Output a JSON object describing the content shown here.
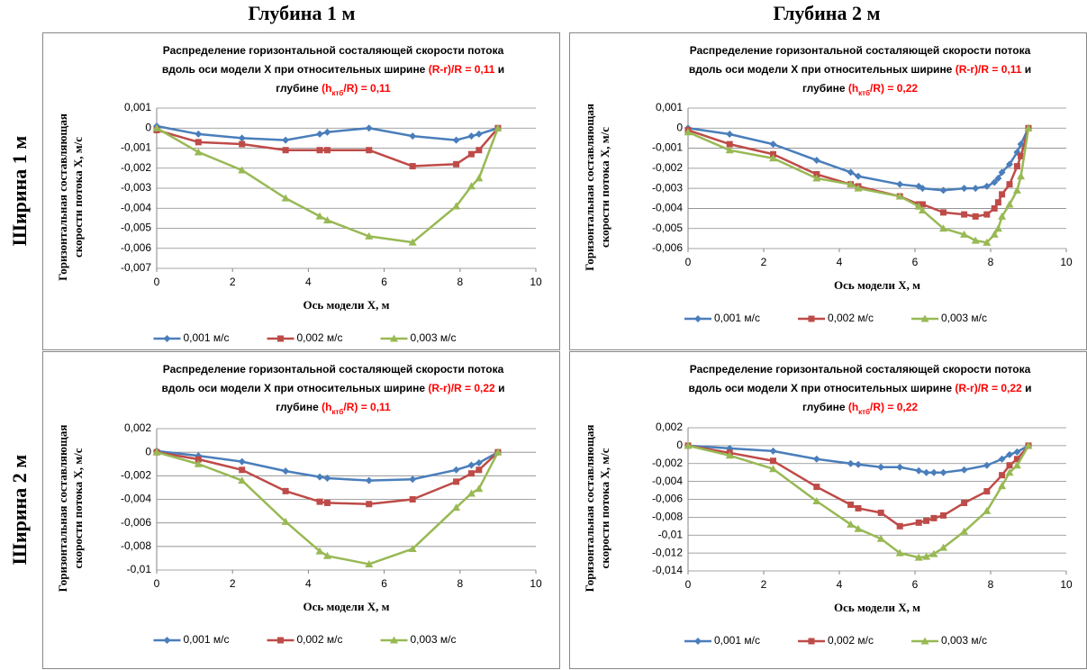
{
  "column_headers": [
    "Глубина 1 м",
    "Глубина 2 м"
  ],
  "row_headers": [
    "Ширина 1 м",
    "Ширина 2 м"
  ],
  "chart_data": [
    {
      "type": "line",
      "title": [
        [
          {
            "text": "Распределение горизонтальной состаляющей скорости потока"
          }
        ],
        [
          {
            "text": "вдоль оси модели X  при относительных ширине "
          },
          {
            "text": "(R-r)/R = 0,11",
            "color": "#ff0000"
          },
          {
            "text": " и"
          }
        ],
        [
          {
            "text": "глубине "
          },
          {
            "text": "(h",
            "color": "#ff0000"
          },
          {
            "text": "ктб",
            "color": "#ff0000",
            "sub": true
          },
          {
            "text": "/R) = 0,11",
            "color": "#ff0000"
          }
        ]
      ],
      "xlabel": "Ось модели X, м",
      "ylabel": [
        "Горизонтальная  составляющая",
        "скорости потока X, м/с"
      ],
      "xlim": [
        0,
        10
      ],
      "xticks": [
        0,
        2,
        4,
        6,
        8,
        10
      ],
      "ylim": [
        -0.007,
        0.001
      ],
      "yticks": [
        {
          "value": 0.001,
          "label": "0,001"
        },
        0,
        {
          "value": -0.001,
          "label": "-0,001"
        },
        {
          "value": -0.002,
          "label": "-0,002"
        },
        {
          "value": -0.003,
          "label": "-0,003"
        },
        {
          "value": -0.004,
          "label": "-0,004"
        },
        {
          "value": -0.005,
          "label": "-0,005"
        },
        {
          "value": -0.006,
          "label": "-0,006"
        },
        {
          "value": -0.007,
          "label": "-0,007"
        }
      ],
      "grid": true,
      "legend": "bottom",
      "series": [
        {
          "name": "0,001 м/с",
          "color": "#4a7ebb",
          "marker": "diamond",
          "x": [
            0,
            1.1,
            2.25,
            3.4,
            4.3,
            4.5,
            5.6,
            6.75,
            7.9,
            8.3,
            8.5,
            9
          ],
          "values": [
            0.0001,
            -0.0003,
            -0.0005,
            -0.0006,
            -0.0003,
            -0.0002,
            0,
            -0.0004,
            -0.0006,
            -0.0004,
            -0.0003,
            0
          ]
        },
        {
          "name": "0,002 м/с",
          "color": "#be4b48",
          "marker": "square",
          "x": [
            0,
            1.1,
            2.25,
            3.4,
            4.3,
            4.5,
            5.6,
            6.75,
            7.9,
            8.3,
            8.5,
            9
          ],
          "values": [
            -0.0001,
            -0.0007,
            -0.0008,
            -0.0011,
            -0.0011,
            -0.0011,
            -0.0011,
            -0.0019,
            -0.0018,
            -0.0013,
            -0.0011,
            0
          ]
        },
        {
          "name": "0,003 м/с",
          "color": "#98b954",
          "marker": "triangle",
          "x": [
            0,
            1.1,
            2.25,
            3.4,
            4.3,
            4.5,
            5.6,
            6.75,
            7.9,
            8.3,
            8.5,
            9
          ],
          "values": [
            0,
            -0.0012,
            -0.0021,
            -0.0035,
            -0.0044,
            -0.0046,
            -0.0054,
            -0.0057,
            -0.0039,
            -0.0029,
            -0.0025,
            0
          ]
        }
      ]
    },
    {
      "type": "line",
      "title": [
        [
          {
            "text": "Распределение горизонтальной состаляющей скорости потока"
          }
        ],
        [
          {
            "text": "вдоль оси модели X  при относительных ширине "
          },
          {
            "text": "(R-r)/R = 0,11",
            "color": "#ff0000"
          },
          {
            "text": " и"
          }
        ],
        [
          {
            "text": "глубине "
          },
          {
            "text": "(h",
            "color": "#ff0000"
          },
          {
            "text": "ктб",
            "color": "#ff0000",
            "sub": true
          },
          {
            "text": "/R) = 0,22",
            "color": "#ff0000"
          }
        ]
      ],
      "xlabel": "Ось модели X, м",
      "ylabel": [
        "Горизонтальная  составляющая",
        "скорости потока X, м/с"
      ],
      "xlim": [
        0,
        10
      ],
      "xticks": [
        0,
        2,
        4,
        6,
        8,
        10
      ],
      "ylim": [
        -0.006,
        0.001
      ],
      "yticks": [
        {
          "value": 0.001,
          "label": "0,001"
        },
        0,
        {
          "value": -0.001,
          "label": "-0,001"
        },
        {
          "value": -0.002,
          "label": "-0,002"
        },
        {
          "value": -0.003,
          "label": "-0,003"
        },
        {
          "value": -0.004,
          "label": "-0,004"
        },
        {
          "value": -0.005,
          "label": "-0,005"
        },
        {
          "value": -0.006,
          "label": "-0,006"
        }
      ],
      "grid": true,
      "legend": "bottom",
      "series": [
        {
          "name": "0,001 м/с",
          "color": "#4a7ebb",
          "marker": "diamond",
          "x": [
            0,
            1.1,
            2.25,
            3.4,
            4.3,
            4.5,
            5.6,
            6.1,
            6.2,
            6.75,
            7.3,
            7.6,
            7.9,
            8.1,
            8.2,
            8.3,
            8.5,
            8.7,
            8.8,
            9
          ],
          "values": [
            0,
            -0.0003,
            -0.0008,
            -0.0016,
            -0.0022,
            -0.0024,
            -0.0028,
            -0.0029,
            -0.003,
            -0.0031,
            -0.003,
            -0.003,
            -0.0029,
            -0.0027,
            -0.0025,
            -0.0022,
            -0.0018,
            -0.0012,
            -0.0008,
            0
          ]
        },
        {
          "name": "0,002 м/с",
          "color": "#be4b48",
          "marker": "square",
          "x": [
            0,
            1.1,
            2.25,
            3.4,
            4.3,
            4.5,
            5.6,
            6.1,
            6.2,
            6.75,
            7.3,
            7.6,
            7.9,
            8.1,
            8.2,
            8.3,
            8.5,
            8.7,
            8.8,
            9
          ],
          "values": [
            -0.0001,
            -0.0008,
            -0.0013,
            -0.0023,
            -0.0028,
            -0.0029,
            -0.0034,
            -0.0038,
            -0.0038,
            -0.0042,
            -0.0043,
            -0.0044,
            -0.0043,
            -0.004,
            -0.0037,
            -0.0033,
            -0.0028,
            -0.0019,
            -0.0014,
            0
          ]
        },
        {
          "name": "0,003 м/с",
          "color": "#98b954",
          "marker": "triangle",
          "x": [
            0,
            1.1,
            2.25,
            3.4,
            4.3,
            4.5,
            5.6,
            6.1,
            6.2,
            6.75,
            7.3,
            7.6,
            7.9,
            8.1,
            8.2,
            8.3,
            8.5,
            8.7,
            8.8,
            9
          ],
          "values": [
            -0.0002,
            -0.0011,
            -0.0015,
            -0.0025,
            -0.0028,
            -0.003,
            -0.0034,
            -0.0039,
            -0.0041,
            -0.005,
            -0.0053,
            -0.0056,
            -0.0057,
            -0.0053,
            -0.005,
            -0.0044,
            -0.0038,
            -0.0031,
            -0.0024,
            0
          ]
        }
      ]
    },
    {
      "type": "line",
      "title": [
        [
          {
            "text": "Распределение горизонтальной состаляющей скорости потока"
          }
        ],
        [
          {
            "text": "вдоль оси модели X  при относительных ширине "
          },
          {
            "text": "(R-r)/R = 0,22",
            "color": "#ff0000"
          },
          {
            "text": " и"
          }
        ],
        [
          {
            "text": "глубине "
          },
          {
            "text": "(h",
            "color": "#ff0000"
          },
          {
            "text": "ктб",
            "color": "#ff0000",
            "sub": true
          },
          {
            "text": "/R) = 0,11",
            "color": "#ff0000"
          }
        ]
      ],
      "xlabel": "Ось модели X, м",
      "ylabel": [
        "Горизонтальная  составляющая",
        "скорости потока X, м/с"
      ],
      "xlim": [
        0,
        10
      ],
      "xticks": [
        0,
        2,
        4,
        6,
        8,
        10
      ],
      "ylim": [
        -0.01,
        0.002
      ],
      "yticks": [
        {
          "value": 0.002,
          "label": "0,002"
        },
        0,
        {
          "value": -0.002,
          "label": "-0,002"
        },
        {
          "value": -0.004,
          "label": "-0,004"
        },
        {
          "value": -0.006,
          "label": "-0,006"
        },
        {
          "value": -0.008,
          "label": "-0,008"
        },
        {
          "value": -0.01,
          "label": "-0,01"
        }
      ],
      "grid": true,
      "legend": "bottom",
      "series": [
        {
          "name": "0,001 м/с",
          "color": "#4a7ebb",
          "marker": "diamond",
          "x": [
            0,
            1.1,
            2.25,
            3.4,
            4.3,
            4.5,
            5.6,
            6.75,
            7.9,
            8.3,
            8.5,
            9
          ],
          "values": [
            0.0001,
            -0.0003,
            -0.0008,
            -0.0016,
            -0.0021,
            -0.0022,
            -0.0024,
            -0.0023,
            -0.0015,
            -0.0011,
            -0.0009,
            0
          ]
        },
        {
          "name": "0,002 м/с",
          "color": "#be4b48",
          "marker": "square",
          "x": [
            0,
            1.1,
            2.25,
            3.4,
            4.3,
            4.5,
            5.6,
            6.75,
            7.9,
            8.3,
            8.5,
            9
          ],
          "values": [
            0,
            -0.0006,
            -0.0015,
            -0.0033,
            -0.0042,
            -0.0043,
            -0.0044,
            -0.004,
            -0.0025,
            -0.0018,
            -0.0015,
            0
          ]
        },
        {
          "name": "0,003 м/с",
          "color": "#98b954",
          "marker": "triangle",
          "x": [
            0,
            1.1,
            2.25,
            3.4,
            4.3,
            4.5,
            5.6,
            6.75,
            7.9,
            8.3,
            8.5,
            9
          ],
          "values": [
            0,
            -0.001,
            -0.0024,
            -0.0059,
            -0.0084,
            -0.0088,
            -0.0095,
            -0.0082,
            -0.0047,
            -0.0035,
            -0.0031,
            0
          ]
        }
      ]
    },
    {
      "type": "line",
      "title": [
        [
          {
            "text": "Распределение горизонтальной состаляющей скорости потока"
          }
        ],
        [
          {
            "text": "вдоль оси модели X  при относительных ширине "
          },
          {
            "text": "(R-r)/R = 0,22",
            "color": "#ff0000"
          },
          {
            "text": " и"
          }
        ],
        [
          {
            "text": "глубине "
          },
          {
            "text": "(h",
            "color": "#ff0000"
          },
          {
            "text": "ктб",
            "color": "#ff0000",
            "sub": true
          },
          {
            "text": "/R) = 0,22",
            "color": "#ff0000"
          }
        ]
      ],
      "xlabel": "Ось модели X, м",
      "ylabel": [
        "Горизонтальная  составляющая",
        "скорости потока X, м/с"
      ],
      "xlim": [
        0,
        10
      ],
      "xticks": [
        0,
        2,
        4,
        6,
        8,
        10
      ],
      "ylim": [
        -0.014,
        0.002
      ],
      "yticks": [
        {
          "value": 0.002,
          "label": "0,002"
        },
        0,
        {
          "value": -0.002,
          "label": "-0,002"
        },
        {
          "value": -0.004,
          "label": "-0,004"
        },
        {
          "value": -0.006,
          "label": "-0,006"
        },
        {
          "value": -0.008,
          "label": "-0,008"
        },
        {
          "value": -0.01,
          "label": "-0,01"
        },
        {
          "value": -0.012,
          "label": "-0,012"
        },
        {
          "value": -0.014,
          "label": "-0,014"
        }
      ],
      "grid": true,
      "legend": "bottom",
      "series": [
        {
          "name": "0,001 м/с",
          "color": "#4a7ebb",
          "marker": "diamond",
          "x": [
            0,
            1.1,
            2.25,
            3.4,
            4.3,
            4.5,
            5.1,
            5.6,
            6.1,
            6.3,
            6.5,
            6.75,
            7.3,
            7.9,
            8.3,
            8.5,
            8.7,
            9
          ],
          "values": [
            0,
            -0.0003,
            -0.0006,
            -0.0015,
            -0.002,
            -0.0021,
            -0.0024,
            -0.0024,
            -0.0028,
            -0.003,
            -0.003,
            -0.003,
            -0.0027,
            -0.0022,
            -0.0015,
            -0.001,
            -0.0007,
            0
          ]
        },
        {
          "name": "0,002 м/с",
          "color": "#be4b48",
          "marker": "square",
          "x": [
            0,
            1.1,
            2.25,
            3.4,
            4.3,
            4.5,
            5.1,
            5.6,
            6.1,
            6.3,
            6.5,
            6.75,
            7.3,
            7.9,
            8.3,
            8.5,
            8.7,
            9
          ],
          "values": [
            0,
            -0.0008,
            -0.0017,
            -0.0046,
            -0.0066,
            -0.007,
            -0.0075,
            -0.009,
            -0.0086,
            -0.0084,
            -0.0081,
            -0.0078,
            -0.0064,
            -0.0051,
            -0.0033,
            -0.0022,
            -0.0015,
            0
          ]
        },
        {
          "name": "0,003 м/с",
          "color": "#98b954",
          "marker": "triangle",
          "x": [
            0,
            1.1,
            2.25,
            3.4,
            4.3,
            4.5,
            5.1,
            5.6,
            6.1,
            6.3,
            6.5,
            6.75,
            7.3,
            7.9,
            8.3,
            8.5,
            8.7,
            9
          ],
          "values": [
            0,
            -0.0011,
            -0.0026,
            -0.0062,
            -0.0088,
            -0.0093,
            -0.0104,
            -0.012,
            -0.0125,
            -0.0124,
            -0.0121,
            -0.0114,
            -0.0096,
            -0.0073,
            -0.0045,
            -0.003,
            -0.0022,
            0
          ]
        }
      ]
    }
  ]
}
